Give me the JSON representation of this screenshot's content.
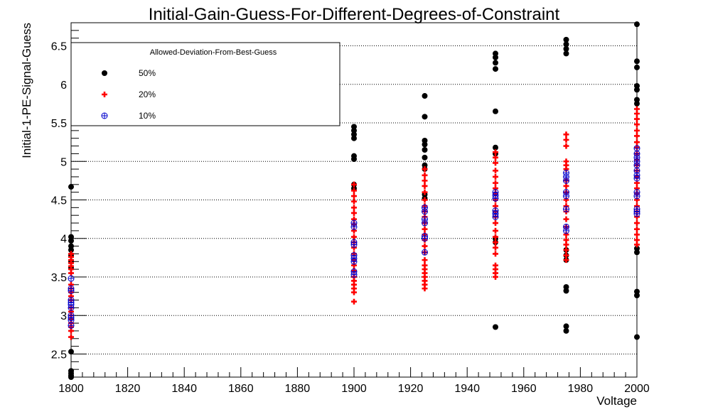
{
  "chart_data": {
    "type": "scatter",
    "title": "Initial-Gain-Guess-For-Different-Degrees-of-Constraint",
    "xlabel": "Voltage",
    "ylabel": "Initial-1-PE-Signal-Guess",
    "xlim": [
      1800,
      2000
    ],
    "ylim": [
      2.2,
      6.8
    ],
    "x_ticks": [
      1800,
      1820,
      1840,
      1860,
      1880,
      1900,
      1920,
      1940,
      1960,
      1980,
      2000
    ],
    "y_ticks": [
      2.5,
      3,
      3.5,
      4,
      4.5,
      5,
      5.5,
      6,
      6.5
    ],
    "y_tick_labels": [
      "2.5",
      "3",
      "3.5",
      "4",
      "4.5",
      "5",
      "5.5",
      "6",
      "6.5"
    ],
    "grid": {
      "horizontal": true,
      "vertical": false,
      "style": "dotted"
    },
    "legend": {
      "title": "Allowed-Deviation-From-Best-Guess",
      "placement": "top-left"
    },
    "series": [
      {
        "name": "50%",
        "marker": "filled-circle",
        "color": "#000000",
        "points": [
          {
            "x": 1800,
            "y": 4.67
          },
          {
            "x": 1800,
            "y": 4.02
          },
          {
            "x": 1800,
            "y": 3.97
          },
          {
            "x": 1800,
            "y": 3.9
          },
          {
            "x": 1800,
            "y": 3.85
          },
          {
            "x": 1800,
            "y": 3.78
          },
          {
            "x": 1800,
            "y": 3.7
          },
          {
            "x": 1800,
            "y": 3.62
          },
          {
            "x": 1800,
            "y": 2.53
          },
          {
            "x": 1800,
            "y": 2.28
          },
          {
            "x": 1800,
            "y": 2.25
          },
          {
            "x": 1800,
            "y": 2.22
          },
          {
            "x": 1800,
            "y": 2.2
          },
          {
            "x": 1900,
            "y": 5.45
          },
          {
            "x": 1900,
            "y": 5.4
          },
          {
            "x": 1900,
            "y": 5.35
          },
          {
            "x": 1900,
            "y": 5.3
          },
          {
            "x": 1900,
            "y": 5.07
          },
          {
            "x": 1900,
            "y": 5.03
          },
          {
            "x": 1900,
            "y": 4.7
          },
          {
            "x": 1900,
            "y": 4.65
          },
          {
            "x": 1925,
            "y": 5.85
          },
          {
            "x": 1925,
            "y": 5.58
          },
          {
            "x": 1925,
            "y": 5.27
          },
          {
            "x": 1925,
            "y": 5.22
          },
          {
            "x": 1925,
            "y": 5.15
          },
          {
            "x": 1925,
            "y": 5.05
          },
          {
            "x": 1925,
            "y": 4.95
          },
          {
            "x": 1925,
            "y": 4.9
          },
          {
            "x": 1925,
            "y": 4.57
          },
          {
            "x": 1925,
            "y": 4.52
          },
          {
            "x": 1950,
            "y": 6.4
          },
          {
            "x": 1950,
            "y": 6.35
          },
          {
            "x": 1950,
            "y": 6.28
          },
          {
            "x": 1950,
            "y": 6.2
          },
          {
            "x": 1950,
            "y": 5.65
          },
          {
            "x": 1950,
            "y": 5.18
          },
          {
            "x": 1950,
            "y": 5.1
          },
          {
            "x": 1950,
            "y": 4.0
          },
          {
            "x": 1950,
            "y": 3.95
          },
          {
            "x": 1950,
            "y": 2.85
          },
          {
            "x": 1975,
            "y": 6.58
          },
          {
            "x": 1975,
            "y": 6.52
          },
          {
            "x": 1975,
            "y": 6.46
          },
          {
            "x": 1975,
            "y": 6.4
          },
          {
            "x": 1975,
            "y": 3.85
          },
          {
            "x": 1975,
            "y": 3.78
          },
          {
            "x": 1975,
            "y": 3.72
          },
          {
            "x": 1975,
            "y": 3.37
          },
          {
            "x": 1975,
            "y": 3.32
          },
          {
            "x": 1975,
            "y": 2.86
          },
          {
            "x": 1975,
            "y": 2.8
          },
          {
            "x": 2000,
            "y": 6.78
          },
          {
            "x": 2000,
            "y": 6.3
          },
          {
            "x": 2000,
            "y": 6.22
          },
          {
            "x": 2000,
            "y": 5.98
          },
          {
            "x": 2000,
            "y": 5.93
          },
          {
            "x": 2000,
            "y": 5.8
          },
          {
            "x": 2000,
            "y": 5.75
          },
          {
            "x": 2000,
            "y": 3.87
          },
          {
            "x": 2000,
            "y": 3.82
          },
          {
            "x": 2000,
            "y": 3.31
          },
          {
            "x": 2000,
            "y": 3.26
          },
          {
            "x": 2000,
            "y": 2.72
          }
        ]
      },
      {
        "name": "20%",
        "marker": "bold-plus",
        "color": "#ff0000",
        "points": [
          {
            "x": 1800,
            "y": 3.8
          },
          {
            "x": 1800,
            "y": 3.76
          },
          {
            "x": 1800,
            "y": 3.72
          },
          {
            "x": 1800,
            "y": 3.68
          },
          {
            "x": 1800,
            "y": 3.64
          },
          {
            "x": 1800,
            "y": 3.6
          },
          {
            "x": 1800,
            "y": 3.55
          },
          {
            "x": 1800,
            "y": 3.4
          },
          {
            "x": 1800,
            "y": 3.35
          },
          {
            "x": 1800,
            "y": 3.3
          },
          {
            "x": 1800,
            "y": 3.25
          },
          {
            "x": 1800,
            "y": 3.2
          },
          {
            "x": 1800,
            "y": 3.1
          },
          {
            "x": 1800,
            "y": 3.05
          },
          {
            "x": 1800,
            "y": 3.0
          },
          {
            "x": 1800,
            "y": 2.95
          },
          {
            "x": 1800,
            "y": 2.9
          },
          {
            "x": 1800,
            "y": 2.85
          },
          {
            "x": 1800,
            "y": 2.8
          },
          {
            "x": 1800,
            "y": 2.72
          },
          {
            "x": 1900,
            "y": 4.7
          },
          {
            "x": 1900,
            "y": 4.62
          },
          {
            "x": 1900,
            "y": 4.55
          },
          {
            "x": 1900,
            "y": 4.48
          },
          {
            "x": 1900,
            "y": 4.4
          },
          {
            "x": 1900,
            "y": 4.33
          },
          {
            "x": 1900,
            "y": 4.25
          },
          {
            "x": 1900,
            "y": 4.18
          },
          {
            "x": 1900,
            "y": 4.1
          },
          {
            "x": 1900,
            "y": 4.02
          },
          {
            "x": 1900,
            "y": 3.95
          },
          {
            "x": 1900,
            "y": 3.88
          },
          {
            "x": 1900,
            "y": 3.8
          },
          {
            "x": 1900,
            "y": 3.72
          },
          {
            "x": 1900,
            "y": 3.65
          },
          {
            "x": 1900,
            "y": 3.58
          },
          {
            "x": 1900,
            "y": 3.5
          },
          {
            "x": 1900,
            "y": 3.45
          },
          {
            "x": 1900,
            "y": 3.4
          },
          {
            "x": 1900,
            "y": 3.35
          },
          {
            "x": 1900,
            "y": 3.3
          },
          {
            "x": 1900,
            "y": 3.18
          },
          {
            "x": 1925,
            "y": 4.9
          },
          {
            "x": 1925,
            "y": 4.82
          },
          {
            "x": 1925,
            "y": 4.75
          },
          {
            "x": 1925,
            "y": 4.68
          },
          {
            "x": 1925,
            "y": 4.6
          },
          {
            "x": 1925,
            "y": 4.5
          },
          {
            "x": 1925,
            "y": 4.42
          },
          {
            "x": 1925,
            "y": 4.35
          },
          {
            "x": 1925,
            "y": 4.28
          },
          {
            "x": 1925,
            "y": 4.2
          },
          {
            "x": 1925,
            "y": 4.12
          },
          {
            "x": 1925,
            "y": 4.05
          },
          {
            "x": 1925,
            "y": 3.98
          },
          {
            "x": 1925,
            "y": 3.9
          },
          {
            "x": 1925,
            "y": 3.82
          },
          {
            "x": 1925,
            "y": 3.72
          },
          {
            "x": 1925,
            "y": 3.65
          },
          {
            "x": 1925,
            "y": 3.6
          },
          {
            "x": 1925,
            "y": 3.55
          },
          {
            "x": 1925,
            "y": 3.5
          },
          {
            "x": 1925,
            "y": 3.45
          },
          {
            "x": 1925,
            "y": 3.4
          },
          {
            "x": 1925,
            "y": 3.35
          },
          {
            "x": 1950,
            "y": 5.12
          },
          {
            "x": 1950,
            "y": 5.05
          },
          {
            "x": 1950,
            "y": 4.98
          },
          {
            "x": 1950,
            "y": 4.88
          },
          {
            "x": 1950,
            "y": 4.8
          },
          {
            "x": 1950,
            "y": 4.72
          },
          {
            "x": 1950,
            "y": 4.65
          },
          {
            "x": 1950,
            "y": 4.58
          },
          {
            "x": 1950,
            "y": 4.5
          },
          {
            "x": 1950,
            "y": 4.42
          },
          {
            "x": 1950,
            "y": 4.35
          },
          {
            "x": 1950,
            "y": 4.28
          },
          {
            "x": 1950,
            "y": 4.2
          },
          {
            "x": 1950,
            "y": 4.1
          },
          {
            "x": 1950,
            "y": 4.02
          },
          {
            "x": 1950,
            "y": 3.95
          },
          {
            "x": 1950,
            "y": 3.88
          },
          {
            "x": 1950,
            "y": 3.8
          },
          {
            "x": 1950,
            "y": 3.65
          },
          {
            "x": 1950,
            "y": 3.6
          },
          {
            "x": 1950,
            "y": 3.55
          },
          {
            "x": 1950,
            "y": 3.5
          },
          {
            "x": 1975,
            "y": 5.35
          },
          {
            "x": 1975,
            "y": 5.28
          },
          {
            "x": 1975,
            "y": 5.2
          },
          {
            "x": 1975,
            "y": 5.0
          },
          {
            "x": 1975,
            "y": 4.95
          },
          {
            "x": 1975,
            "y": 4.9
          },
          {
            "x": 1975,
            "y": 4.75
          },
          {
            "x": 1975,
            "y": 4.68
          },
          {
            "x": 1975,
            "y": 4.6
          },
          {
            "x": 1975,
            "y": 4.5
          },
          {
            "x": 1975,
            "y": 4.42
          },
          {
            "x": 1975,
            "y": 4.35
          },
          {
            "x": 1975,
            "y": 4.25
          },
          {
            "x": 1975,
            "y": 4.15
          },
          {
            "x": 1975,
            "y": 4.05
          },
          {
            "x": 1975,
            "y": 3.98
          },
          {
            "x": 1975,
            "y": 3.92
          },
          {
            "x": 1975,
            "y": 3.85
          },
          {
            "x": 1975,
            "y": 3.78
          },
          {
            "x": 1975,
            "y": 3.72
          },
          {
            "x": 2000,
            "y": 5.68
          },
          {
            "x": 2000,
            "y": 5.62
          },
          {
            "x": 2000,
            "y": 5.55
          },
          {
            "x": 2000,
            "y": 5.48
          },
          {
            "x": 2000,
            "y": 5.4
          },
          {
            "x": 2000,
            "y": 5.33
          },
          {
            "x": 2000,
            "y": 5.25
          },
          {
            "x": 2000,
            "y": 5.18
          },
          {
            "x": 2000,
            "y": 5.1
          },
          {
            "x": 2000,
            "y": 5.02
          },
          {
            "x": 2000,
            "y": 4.95
          },
          {
            "x": 2000,
            "y": 4.88
          },
          {
            "x": 2000,
            "y": 4.8
          },
          {
            "x": 2000,
            "y": 4.72
          },
          {
            "x": 2000,
            "y": 4.65
          },
          {
            "x": 2000,
            "y": 4.58
          },
          {
            "x": 2000,
            "y": 4.5
          },
          {
            "x": 2000,
            "y": 4.42
          },
          {
            "x": 2000,
            "y": 4.35
          },
          {
            "x": 2000,
            "y": 4.28
          },
          {
            "x": 2000,
            "y": 4.2
          },
          {
            "x": 2000,
            "y": 4.12
          },
          {
            "x": 2000,
            "y": 4.05
          },
          {
            "x": 2000,
            "y": 3.98
          },
          {
            "x": 2000,
            "y": 3.92
          }
        ]
      },
      {
        "name": "10%",
        "marker": "circled-plus",
        "color": "#0000cc",
        "points": [
          {
            "x": 1800,
            "y": 3.48
          },
          {
            "x": 1800,
            "y": 3.35
          },
          {
            "x": 1800,
            "y": 3.32
          },
          {
            "x": 1800,
            "y": 3.2
          },
          {
            "x": 1800,
            "y": 3.17
          },
          {
            "x": 1800,
            "y": 3.14
          },
          {
            "x": 1800,
            "y": 3.1
          },
          {
            "x": 1800,
            "y": 3.0
          },
          {
            "x": 1800,
            "y": 2.97
          },
          {
            "x": 1800,
            "y": 2.94
          },
          {
            "x": 1800,
            "y": 2.87
          },
          {
            "x": 1900,
            "y": 4.2
          },
          {
            "x": 1900,
            "y": 4.15
          },
          {
            "x": 1900,
            "y": 3.95
          },
          {
            "x": 1900,
            "y": 3.92
          },
          {
            "x": 1900,
            "y": 3.78
          },
          {
            "x": 1900,
            "y": 3.74
          },
          {
            "x": 1900,
            "y": 3.7
          },
          {
            "x": 1900,
            "y": 3.57
          },
          {
            "x": 1900,
            "y": 3.53
          },
          {
            "x": 1925,
            "y": 4.4
          },
          {
            "x": 1925,
            "y": 4.35
          },
          {
            "x": 1925,
            "y": 4.25
          },
          {
            "x": 1925,
            "y": 4.2
          },
          {
            "x": 1925,
            "y": 4.03
          },
          {
            "x": 1925,
            "y": 4.0
          },
          {
            "x": 1925,
            "y": 3.82
          },
          {
            "x": 1950,
            "y": 4.6
          },
          {
            "x": 1950,
            "y": 4.56
          },
          {
            "x": 1950,
            "y": 4.52
          },
          {
            "x": 1950,
            "y": 4.36
          },
          {
            "x": 1950,
            "y": 4.32
          },
          {
            "x": 1950,
            "y": 4.28
          },
          {
            "x": 1975,
            "y": 4.85
          },
          {
            "x": 1975,
            "y": 4.8
          },
          {
            "x": 1975,
            "y": 4.75
          },
          {
            "x": 1975,
            "y": 4.6
          },
          {
            "x": 1975,
            "y": 4.55
          },
          {
            "x": 1975,
            "y": 4.38
          },
          {
            "x": 1975,
            "y": 4.15
          },
          {
            "x": 1975,
            "y": 4.1
          },
          {
            "x": 2000,
            "y": 5.17
          },
          {
            "x": 2000,
            "y": 5.1
          },
          {
            "x": 2000,
            "y": 5.05
          },
          {
            "x": 2000,
            "y": 5.0
          },
          {
            "x": 2000,
            "y": 4.95
          },
          {
            "x": 2000,
            "y": 4.88
          },
          {
            "x": 2000,
            "y": 4.82
          },
          {
            "x": 2000,
            "y": 4.78
          },
          {
            "x": 2000,
            "y": 4.6
          },
          {
            "x": 2000,
            "y": 4.55
          },
          {
            "x": 2000,
            "y": 4.38
          },
          {
            "x": 2000,
            "y": 4.35
          },
          {
            "x": 2000,
            "y": 4.32
          }
        ]
      }
    ]
  }
}
